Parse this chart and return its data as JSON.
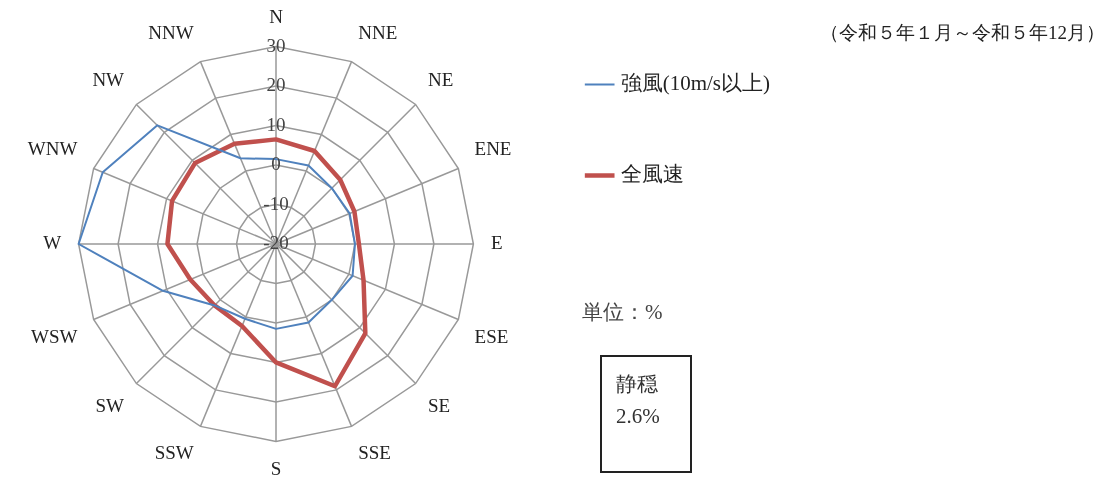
{
  "chart_data": {
    "type": "radar",
    "subtitle": "（令和５年１月～令和５年12月）",
    "categories": [
      "N",
      "NNE",
      "NE",
      "ENE",
      "E",
      "ESE",
      "SE",
      "SSE",
      "S",
      "SSW",
      "SW",
      "WSW",
      "W",
      "WNW",
      "NW",
      "NNW"
    ],
    "series": [
      {
        "name": "強風(10m/s以上)",
        "color": "#4f81bd",
        "values": [
          1.5,
          1.5,
          0,
          0.2,
          0,
          1,
          0,
          1.5,
          1.5,
          0.5,
          2,
          11,
          30,
          27.5,
          22.5,
          3.5
        ]
      },
      {
        "name": "全風速",
        "color": "#c0504d",
        "values": [
          6.5,
          5.5,
          3,
          1.5,
          1,
          4,
          12,
          19,
          10,
          2.5,
          2,
          3.5,
          7.5,
          8.5,
          9,
          7.5
        ]
      }
    ],
    "ylim": [
      -20,
      30
    ],
    "yticks": [
      -20,
      -10,
      0,
      10,
      20,
      30
    ],
    "grid": true,
    "legend": "right",
    "marker": "none",
    "line_style": "solid",
    "annotations": [
      "単位：%",
      "静穏\n2.6%"
    ]
  }
}
